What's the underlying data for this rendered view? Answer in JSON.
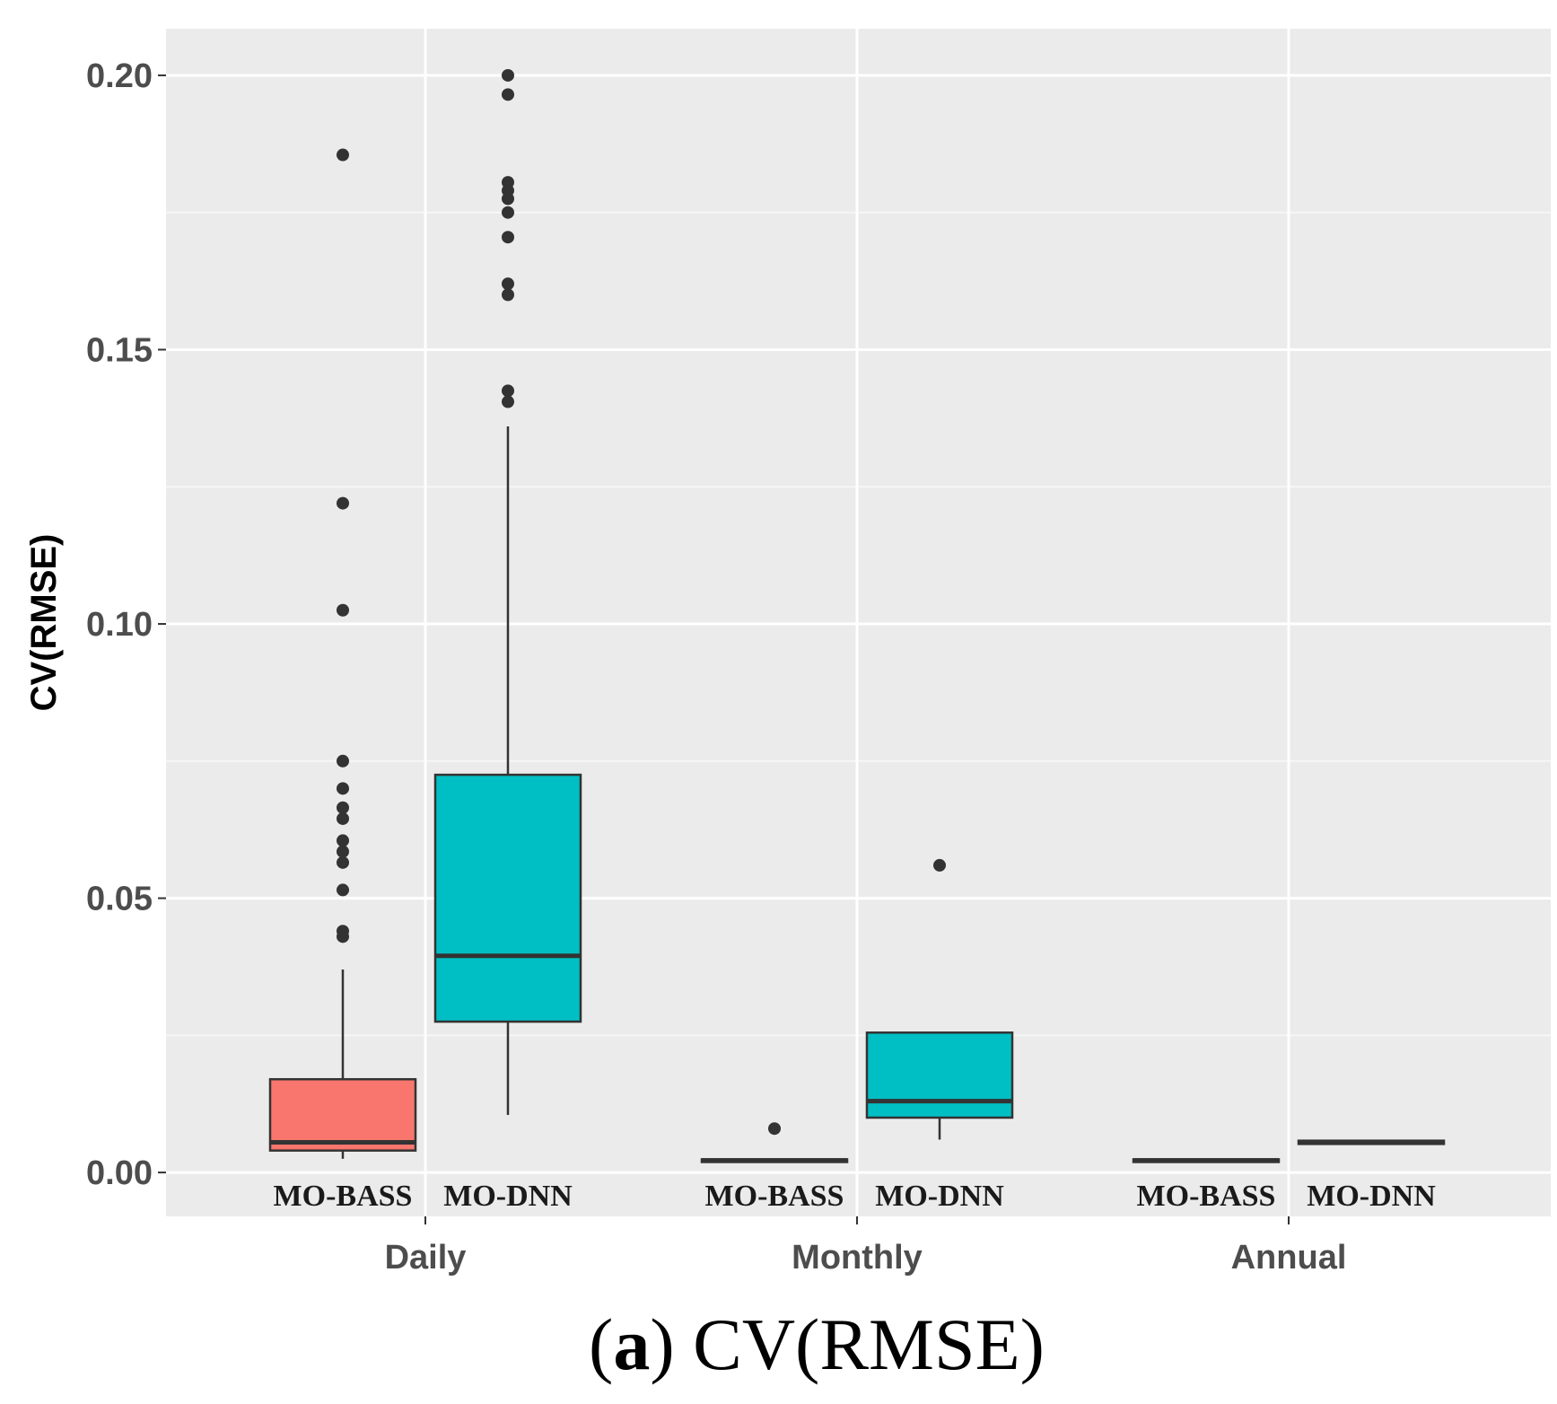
{
  "chart_data": {
    "type": "boxplot",
    "ylabel": "CV(RMSE)",
    "ylim": [
      -0.008,
      0.2085
    ],
    "yticks": [
      "0.00",
      "0.05",
      "0.10",
      "0.15",
      "0.20"
    ],
    "categories": [
      "Daily",
      "Monthly",
      "Annual"
    ],
    "grid": true,
    "caption": {
      "label": "a",
      "text": " CV(RMSE)"
    },
    "series": [
      {
        "name": "MO-BASS",
        "color": "#F8766D"
      },
      {
        "name": "MO-DNN",
        "color": "#00BFC4"
      }
    ],
    "boxes": [
      {
        "category": "Daily",
        "series": "MO-BASS",
        "label": "MO-BASS",
        "whisker_low": 0.0025,
        "q1": 0.004,
        "median": 0.0055,
        "q3": 0.017,
        "whisker_high": 0.037,
        "outliers": [
          0.043,
          0.044,
          0.0515,
          0.0565,
          0.0585,
          0.0605,
          0.0645,
          0.0665,
          0.07,
          0.075,
          0.1025,
          0.122,
          0.1855
        ]
      },
      {
        "category": "Daily",
        "series": "MO-DNN",
        "label": "MO-DNN",
        "whisker_low": 0.0105,
        "q1": 0.0275,
        "median": 0.0395,
        "q3": 0.0725,
        "whisker_high": 0.136,
        "outliers": [
          0.1405,
          0.1425,
          0.16,
          0.162,
          0.1705,
          0.175,
          0.1775,
          0.179,
          0.1805,
          0.1965,
          0.2
        ]
      },
      {
        "category": "Monthly",
        "series": "MO-BASS",
        "label": "MO-BASS",
        "whisker_low": 0.002,
        "q1": 0.002,
        "median": 0.0022,
        "q3": 0.0024,
        "whisker_high": 0.0024,
        "outliers": [
          0.008
        ]
      },
      {
        "category": "Monthly",
        "series": "MO-DNN",
        "label": "MO-DNN",
        "whisker_low": 0.006,
        "q1": 0.01,
        "median": 0.013,
        "q3": 0.0255,
        "whisker_high": 0.0255,
        "outliers": [
          0.056
        ]
      },
      {
        "category": "Annual",
        "series": "MO-BASS",
        "label": "MO-BASS",
        "whisker_low": 0.002,
        "q1": 0.002,
        "median": 0.0022,
        "q3": 0.0024,
        "whisker_high": 0.0024,
        "outliers": []
      },
      {
        "category": "Annual",
        "series": "MO-DNN",
        "label": "MO-DNN",
        "whisker_low": 0.0052,
        "q1": 0.0052,
        "median": 0.0055,
        "q3": 0.0058,
        "whisker_high": 0.0058,
        "outliers": []
      }
    ]
  }
}
